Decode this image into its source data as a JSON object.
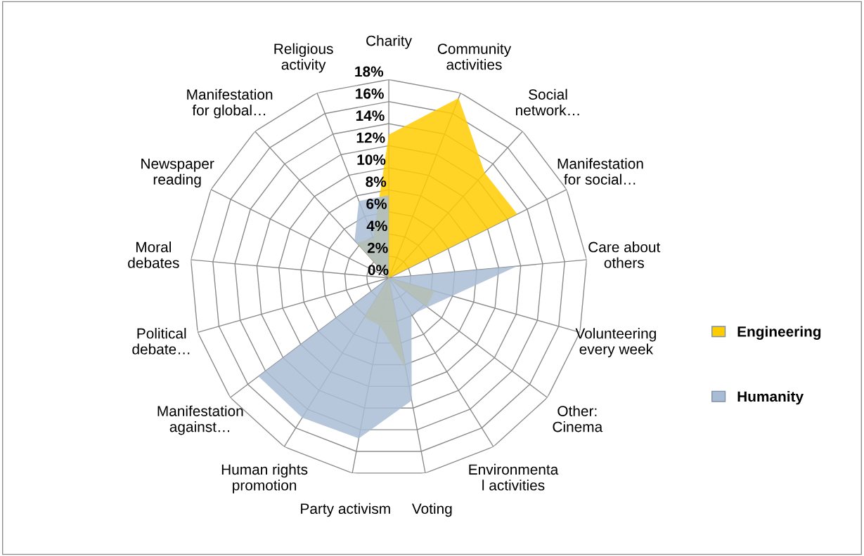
{
  "chart_data": {
    "type": "radar",
    "categories": [
      "Charity",
      "Community\nactivities",
      "Social\nnetwork…",
      "Manifestation\nfor social…",
      "Care about\nothers",
      "Volunteering\nevery week",
      "Other:\nCinema",
      "Environmenta\nl activities",
      "Voting",
      "Party activism",
      "Human rights\npromotion",
      "Manifestation\nagainst…",
      "Political\ndebate…",
      "Moral\ndebates",
      "Newspaper\nreading",
      "Manifestation\nfor global…",
      "Religious\nactivity"
    ],
    "series": [
      {
        "name": "Engineering",
        "color": "#ffcc00",
        "values": [
          13,
          17.5,
          12.9,
          13,
          0,
          4.3,
          4.3,
          0,
          8.3,
          4.4,
          4.2,
          0,
          0,
          0,
          0,
          4.3,
          3.9
        ]
      },
      {
        "name": "Humanity",
        "color": "#a9bcd5",
        "values": [
          7.5,
          0,
          0,
          0,
          11.7,
          null,
          null,
          3.9,
          11.3,
          14.8,
          14.9,
          14.8,
          0,
          0,
          0,
          4.6,
          7.5
        ]
      }
    ],
    "ylim": [
      0,
      18
    ],
    "yticks": [
      {
        "value": 0,
        "label": "0%"
      },
      {
        "value": 2,
        "label": "2%"
      },
      {
        "value": 4,
        "label": "4%"
      },
      {
        "value": 6,
        "label": "6%"
      },
      {
        "value": 8,
        "label": "8%"
      },
      {
        "value": 10,
        "label": "10%"
      },
      {
        "value": 12,
        "label": "12%"
      },
      {
        "value": 14,
        "label": "14%"
      },
      {
        "value": 16,
        "label": "16%"
      },
      {
        "value": 18,
        "label": "18%"
      }
    ],
    "grid": true,
    "legend": "right"
  }
}
